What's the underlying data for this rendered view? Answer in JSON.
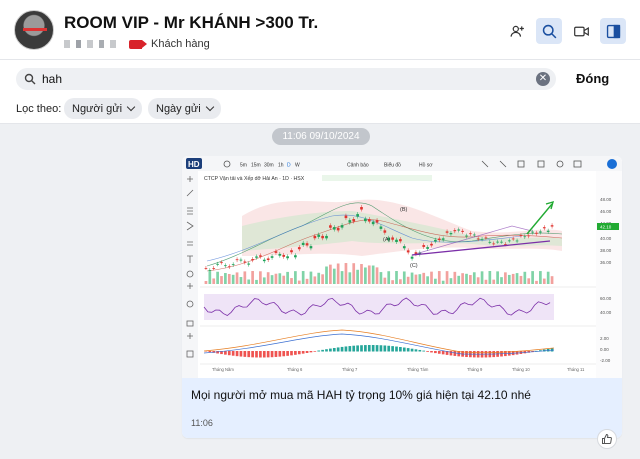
{
  "header": {
    "title": "ROOM VIP - Mr KHÁNH >300 Tr.",
    "tag_label": "Khách hàng",
    "icons": [
      "add-member-icon",
      "search-icon",
      "video-call-icon",
      "sidebar-toggle-icon"
    ]
  },
  "search": {
    "value": "hah",
    "close_label": "Đóng",
    "filter_label": "Lọc theo:",
    "filters": [
      "Người gửi",
      "Ngày gửi"
    ]
  },
  "time_chip": "11:06 09/10/2024",
  "message": {
    "text": "Mọi người mở mua mã HAH tỷ trọng 10% giá hiện tại 42.10 nhé",
    "time": "11:06",
    "chart": {
      "logo": "HD",
      "toolbar_left": [
        "5m",
        "15m",
        "30m",
        "1h",
        "D",
        "W"
      ],
      "toolbar_mid": [
        "Cảnh báo",
        "Biểu đồ",
        "Hồ sơ"
      ],
      "symbol_line": "CTCP Vận tải và Xếp dỡ Hải An · 1D · HSX",
      "annotations": [
        "(B)",
        "(A)",
        "(C)"
      ],
      "price_labels": [
        "48.00",
        "46.00",
        "44.00",
        "42.10",
        "40.00",
        "38.00",
        "36.00"
      ],
      "rsi_labels": [
        "60.00",
        "40.00"
      ],
      "macd_labels": [
        "2.00",
        "0.00",
        "-2.00"
      ],
      "month_labels": [
        "Tháng Năm",
        "Tháng 6",
        "Tháng 7",
        "Tháng Tám",
        "Tháng 9",
        "Tháng 10",
        "Tháng 11"
      ],
      "accent": "#22aa33",
      "trend_color": "#7b2fa8"
    }
  },
  "colors": {
    "accent": "#1a6fd6",
    "tag": "#d8232a",
    "bubble": "#e5efff"
  }
}
